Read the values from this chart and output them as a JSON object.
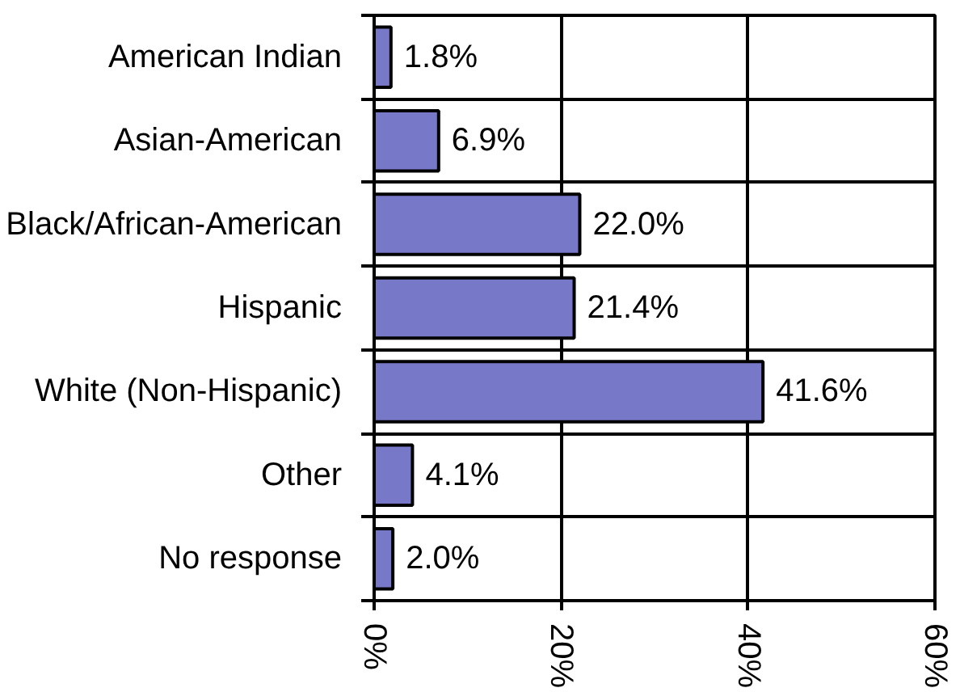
{
  "chart_data": {
    "type": "bar",
    "orientation": "horizontal",
    "categories": [
      "American Indian",
      "Asian-American",
      "Black/African-American",
      "Hispanic",
      "White (Non-Hispanic)",
      "Other",
      "No response"
    ],
    "values": [
      1.8,
      6.9,
      22.0,
      21.4,
      41.6,
      4.1,
      2.0
    ],
    "value_labels": [
      "1.8%",
      "6.9%",
      "22.0%",
      "21.4%",
      "41.6%",
      "4.1%",
      "2.0%"
    ],
    "color": "#7878c8",
    "xlim": [
      0,
      60
    ],
    "xticks": [
      {
        "value": 0,
        "label": "0%"
      },
      {
        "value": 20,
        "label": "20%"
      },
      {
        "value": 40,
        "label": "40%"
      },
      {
        "value": 60,
        "label": "60%"
      }
    ],
    "grid": true
  }
}
